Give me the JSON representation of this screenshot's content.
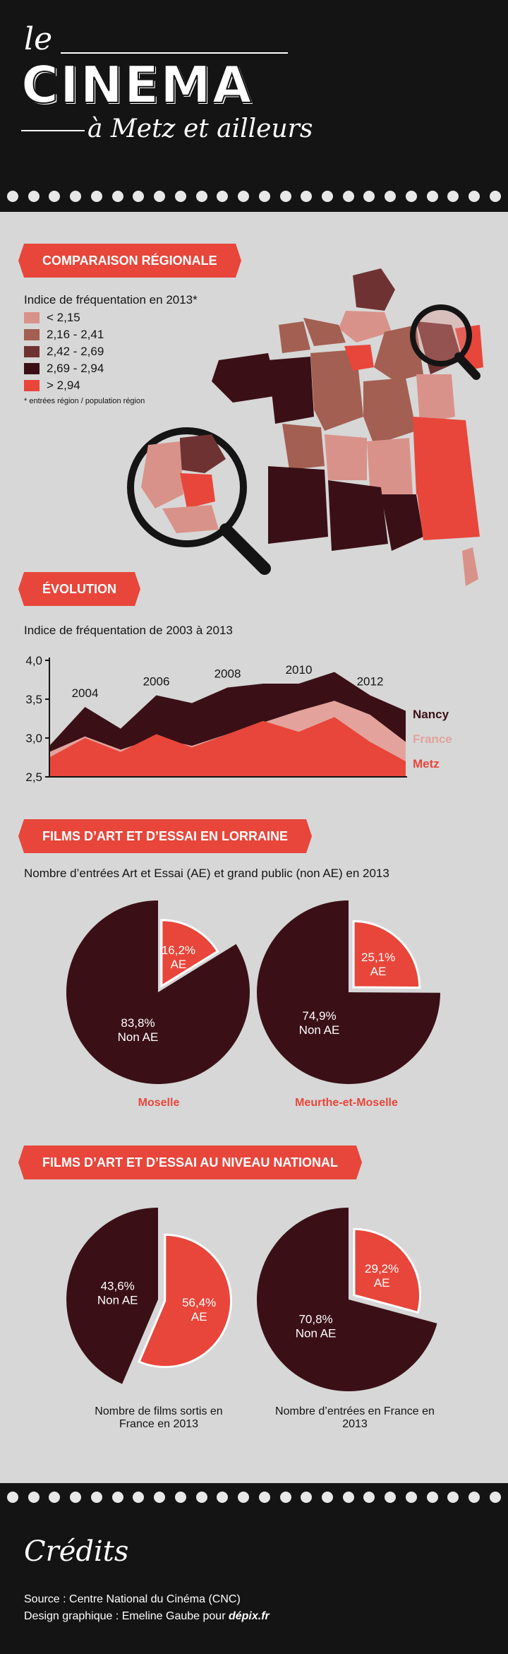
{
  "header": {
    "line1": "le",
    "line2": "CINEMA",
    "line3": "à Metz et ailleurs"
  },
  "sections": {
    "regional": "COMPARAISON RÉGIONALE",
    "evolution": "ÉVOLUTION",
    "lorraine": "FILMS D’ART ET D’ESSAI EN LORRAINE",
    "national": "FILMS D’ART ET D’ESSAI AU NIVEAU NATIONAL"
  },
  "regional": {
    "legend_title": "Indice de fréquentation en 2013*",
    "legend": [
      {
        "label": "< 2,15",
        "color": "#d9928a"
      },
      {
        "label": "2,16 - 2,41",
        "color": "#a35f52"
      },
      {
        "label": "2,42 - 2,69",
        "color": "#6f3232"
      },
      {
        "label": "2,69 - 2,94",
        "color": "#3a1016"
      },
      {
        "label": "> 2,94",
        "color": "#e8463b"
      }
    ],
    "footnote": "* entrées région / population région"
  },
  "evolution": {
    "subtitle": "Indice de fréquentation de 2003 à 2013"
  },
  "lorraine": {
    "subtitle": "Nombre d’entrées Art et Essai (AE) et grand public (non AE) en 2013"
  },
  "chart_data": [
    {
      "type": "area",
      "title": "Indice de fréquentation de 2003 à 2013",
      "x": [
        2003,
        2004,
        2005,
        2006,
        2007,
        2008,
        2009,
        2010,
        2011,
        2012,
        2013
      ],
      "x_tick_labels": [
        "2004",
        "2006",
        "2008",
        "2010",
        "2012"
      ],
      "y_tick_labels": [
        "4,0",
        "3,5",
        "3,0",
        "2,5"
      ],
      "ylim": [
        2.5,
        4.0
      ],
      "series": [
        {
          "name": "Nancy",
          "color": "#3a1016",
          "values": [
            2.9,
            3.4,
            3.12,
            3.55,
            3.45,
            3.65,
            3.7,
            3.7,
            3.85,
            3.55,
            3.35
          ]
        },
        {
          "name": "France",
          "color": "#e3a39c",
          "values": [
            2.82,
            3.02,
            2.85,
            3.0,
            2.9,
            3.05,
            3.2,
            3.35,
            3.48,
            3.3,
            2.95
          ]
        },
        {
          "name": "Metz",
          "color": "#e8463b",
          "values": [
            2.75,
            3.0,
            2.82,
            3.05,
            2.88,
            3.05,
            3.22,
            3.08,
            3.27,
            2.95,
            2.7
          ]
        }
      ]
    },
    {
      "type": "pie",
      "title": "Moselle",
      "slices": [
        {
          "label": "AE",
          "value": 16.2,
          "text": "16,2%",
          "color": "#e8463b"
        },
        {
          "label": "Non AE",
          "value": 83.8,
          "text": "83,8%",
          "color": "#3a1016"
        }
      ]
    },
    {
      "type": "pie",
      "title": "Meurthe-et-Moselle",
      "slices": [
        {
          "label": "AE",
          "value": 25.1,
          "text": "25,1%",
          "color": "#e8463b"
        },
        {
          "label": "Non AE",
          "value": 74.9,
          "text": "74,9%",
          "color": "#3a1016"
        }
      ]
    },
    {
      "type": "pie",
      "title": "Nombre de films sortis en France en 2013",
      "slices": [
        {
          "label": "Non AE",
          "value": 43.6,
          "text": "43,6%",
          "color": "#3a1016"
        },
        {
          "label": "AE",
          "value": 56.4,
          "text": "56,4%",
          "color": "#e8463b"
        }
      ]
    },
    {
      "type": "pie",
      "title": "Nombre d’entrées en France en 2013",
      "slices": [
        {
          "label": "AE",
          "value": 29.2,
          "text": "29,2%",
          "color": "#e8463b"
        },
        {
          "label": "Non AE",
          "value": 70.8,
          "text": "70,8%",
          "color": "#3a1016"
        }
      ]
    }
  ],
  "credits": {
    "title": "Crédits",
    "source": "Source : Centre National du Cinéma (CNC)",
    "design": "Design graphique : Emeline Gaube pour",
    "brand": "dépix.fr"
  }
}
